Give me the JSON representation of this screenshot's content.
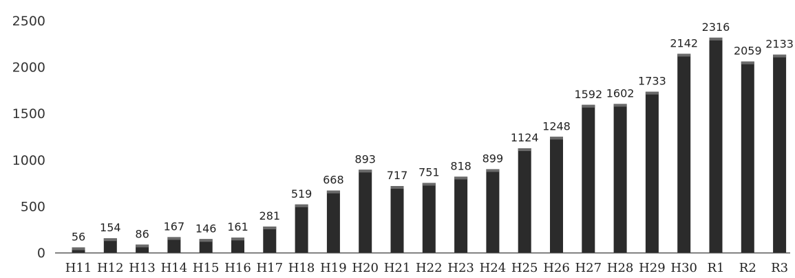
{
  "chart_data": {
    "type": "bar",
    "categories": [
      "H11",
      "H12",
      "H13",
      "H14",
      "H15",
      "H16",
      "H17",
      "H18",
      "H19",
      "H20",
      "H21",
      "H22",
      "H23",
      "H24",
      "H25",
      "H26",
      "H27",
      "H28",
      "H29",
      "H30",
      "R1",
      "R2",
      "R3"
    ],
    "values": [
      56,
      154,
      86,
      167,
      146,
      161,
      281,
      519,
      668,
      893,
      717,
      751,
      818,
      899,
      1124,
      1248,
      1592,
      1602,
      1733,
      2142,
      2316,
      2059,
      2133
    ],
    "ylim": [
      0,
      2500
    ],
    "yticks": [
      0,
      500,
      1000,
      1500,
      2000,
      2500
    ],
    "grid": false,
    "legend": "none",
    "bar_color": "#2b2b2b"
  }
}
